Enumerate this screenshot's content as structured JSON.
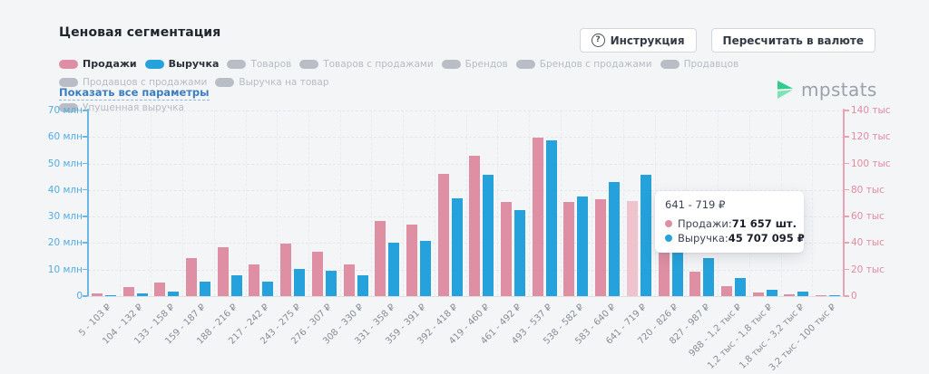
{
  "header": {
    "title": "Ценовая сегментация",
    "instruction_button": "Инструкция",
    "instruction_icon": "question-circle-icon",
    "currency_button": "Пересчитать в валюте"
  },
  "legend": {
    "items": [
      {
        "label": "Продажи",
        "active": true,
        "color": "#de8fa3"
      },
      {
        "label": "Выручка",
        "active": true,
        "color": "#25a2db"
      },
      {
        "label": "Товаров",
        "active": false
      },
      {
        "label": "Товаров с продажами",
        "active": false
      },
      {
        "label": "Брендов",
        "active": false
      },
      {
        "label": "Брендов с продажами",
        "active": false
      },
      {
        "label": "Продавцов",
        "active": false
      },
      {
        "label": "Продавцов с продажами",
        "active": false
      },
      {
        "label": "Выручка на товар",
        "active": false
      },
      {
        "label": "Упущенная выручка",
        "active": false
      }
    ],
    "show_all_link": "Показать все параметры"
  },
  "logo": {
    "icon": "mpstats-play-icon",
    "text": "mpstats"
  },
  "tooltip": {
    "title": "641 - 719 ₽",
    "rows": [
      {
        "label": "Продажи:",
        "value": "71 657 шт.",
        "color": "#de8fa3"
      },
      {
        "label": "Выручка:",
        "value": "45 707 095 ₽",
        "color": "#25a2db"
      }
    ]
  },
  "chart_data": {
    "type": "bar",
    "title": "Ценовая сегментация",
    "categories": [
      "5 - 103 ₽",
      "104 - 132 ₽",
      "133 - 158 ₽",
      "159 - 187 ₽",
      "188 - 216 ₽",
      "217 - 242 ₽",
      "243 - 275 ₽",
      "276 - 307 ₽",
      "308 - 330 ₽",
      "331 - 358 ₽",
      "359 - 391 ₽",
      "392 - 418 ₽",
      "419 - 460 ₽",
      "461 - 492 ₽",
      "493 - 537 ₽",
      "538 - 582 ₽",
      "583 - 640 ₽",
      "641 - 719 ₽",
      "720 - 826 ₽",
      "827 - 987 ₽",
      "988 - 1,2 тыс ₽",
      "1,2 тыс - 1,8 тыс ₽",
      "1,8 тыс - 3,2 тыс ₽",
      "3,2 тыс - 100 тыс ₽"
    ],
    "series": [
      {
        "name": "Продажи",
        "axis": "right",
        "unit": "тыс шт.",
        "color": "#de8fa3",
        "values": [
          2.3,
          6.9,
          10.0,
          28.7,
          36.7,
          23.6,
          39.4,
          33.2,
          24.0,
          56.5,
          54.2,
          92.0,
          106.0,
          71.2,
          119.5,
          70.7,
          73.0,
          71.657,
          34.8,
          18.3,
          7.7,
          2.7,
          1.2,
          0.4
        ]
      },
      {
        "name": "Выручка",
        "axis": "left",
        "unit": "млн ₽",
        "color": "#25a2db",
        "values": [
          0.4,
          0.9,
          1.7,
          5.4,
          8.0,
          5.5,
          10.1,
          9.4,
          7.7,
          20.0,
          20.9,
          36.9,
          45.6,
          32.4,
          58.7,
          37.7,
          42.9,
          45.707,
          18.4,
          14.2,
          6.9,
          2.3,
          1.8,
          0.5
        ]
      }
    ],
    "left_axis": {
      "ticks": [
        "0",
        "10 млн",
        "20 млн",
        "30 млн",
        "40 млн",
        "50 млн",
        "60 млн",
        "70 млн"
      ],
      "max": 70,
      "color": "#51ace3"
    },
    "right_axis": {
      "ticks": [
        "0",
        "20 тыс",
        "40 тыс",
        "60 тыс",
        "80 тыс",
        "100 тыс",
        "120 тыс",
        "140 тыс"
      ],
      "max": 140,
      "color": "#e28aa0"
    },
    "grid": true,
    "legend_position": "top",
    "highlight_index": 17,
    "highlight_color": "#efc3cd"
  }
}
